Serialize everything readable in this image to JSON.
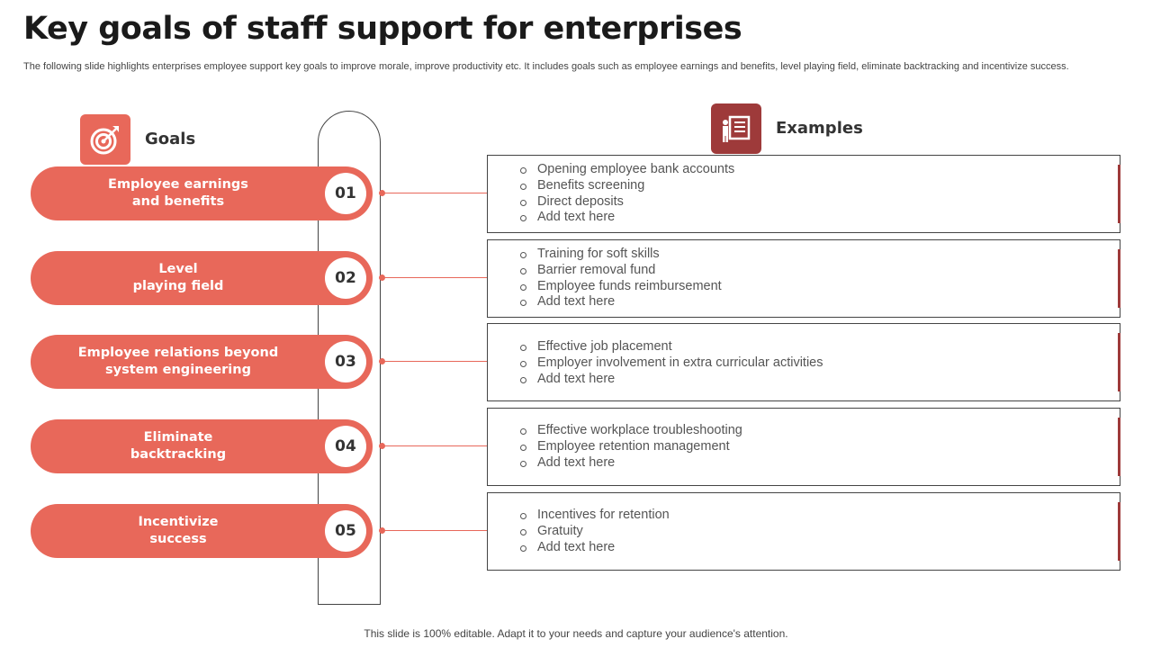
{
  "title": "Key goals of staff support for enterprises",
  "subtitle": "The following slide highlights enterprises employee support key goals to improve morale, improve productivity etc. It includes goals such as employee earnings and benefits, level playing field, eliminate backtracking and incentivize success.",
  "headers": {
    "goals": "Goals",
    "examples": "Examples"
  },
  "icons": {
    "goals": "target-icon",
    "examples": "presentation-board-icon"
  },
  "colors": {
    "accent": "#e8685a",
    "dark_accent": "#9e3a3a"
  },
  "goals": [
    {
      "number": "01",
      "label": "Employee earnings\nand benefits",
      "examples": [
        "Opening employee bank accounts",
        "Benefits screening",
        "Direct deposits",
        "Add text here"
      ]
    },
    {
      "number": "02",
      "label": "Level\nplaying field",
      "examples": [
        "Training for soft skills",
        "Barrier removal fund",
        "Employee funds reimbursement",
        "Add text here"
      ]
    },
    {
      "number": "03",
      "label": "Employee relations beyond\nsystem engineering",
      "examples": [
        "Effective job placement",
        "Employer involvement in extra curricular activities",
        "Add text here"
      ]
    },
    {
      "number": "04",
      "label": "Eliminate\nbacktracking",
      "examples": [
        "Effective workplace troubleshooting",
        "Employee retention management",
        "Add text here"
      ]
    },
    {
      "number": "05",
      "label": "Incentivize\nsuccess",
      "examples": [
        "Incentives for retention",
        "Gratuity",
        "Add text here"
      ]
    }
  ],
  "footer": "This slide is 100% editable. Adapt it to your needs and capture your audience's attention."
}
